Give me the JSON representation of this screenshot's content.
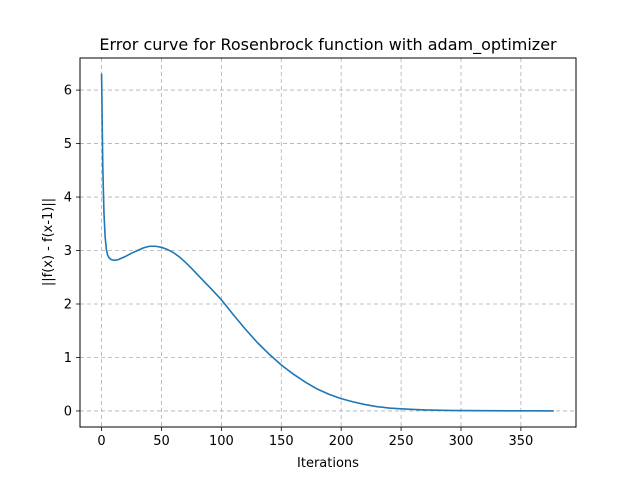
{
  "chart_data": {
    "type": "line",
    "title": "Error curve for Rosenbrock function with adam_optimizer",
    "xlabel": "Iterations",
    "ylabel": "||f(x) - f(x-1)||",
    "xlim": [
      -18,
      396
    ],
    "ylim": [
      -0.3,
      6.6
    ],
    "xticks": [
      0,
      50,
      100,
      150,
      200,
      250,
      300,
      350
    ],
    "yticks": [
      0,
      1,
      2,
      3,
      4,
      5,
      6
    ],
    "grid": true,
    "grid_style": "dashed",
    "line_color": "#1f77b4",
    "series": [
      {
        "x": [
          0,
          1,
          2,
          3,
          4,
          5,
          6,
          8,
          10,
          12,
          14,
          16,
          18,
          20,
          25,
          30,
          35,
          40,
          45,
          50,
          55,
          60,
          65,
          70,
          75,
          80,
          90,
          100,
          110,
          120,
          130,
          140,
          150,
          160,
          170,
          180,
          190,
          200,
          210,
          220,
          230,
          240,
          250,
          260,
          270,
          280,
          290,
          300,
          320,
          340,
          360,
          377
        ],
        "y": [
          6.3,
          4.6,
          3.7,
          3.25,
          3.02,
          2.92,
          2.87,
          2.83,
          2.82,
          2.82,
          2.83,
          2.85,
          2.87,
          2.89,
          2.95,
          3.0,
          3.05,
          3.08,
          3.08,
          3.06,
          3.02,
          2.96,
          2.88,
          2.78,
          2.67,
          2.55,
          2.32,
          2.08,
          1.8,
          1.53,
          1.28,
          1.06,
          0.86,
          0.69,
          0.54,
          0.41,
          0.31,
          0.23,
          0.17,
          0.12,
          0.08,
          0.055,
          0.04,
          0.028,
          0.02,
          0.014,
          0.01,
          0.008,
          0.005,
          0.003,
          0.002,
          0.001
        ]
      }
    ]
  }
}
